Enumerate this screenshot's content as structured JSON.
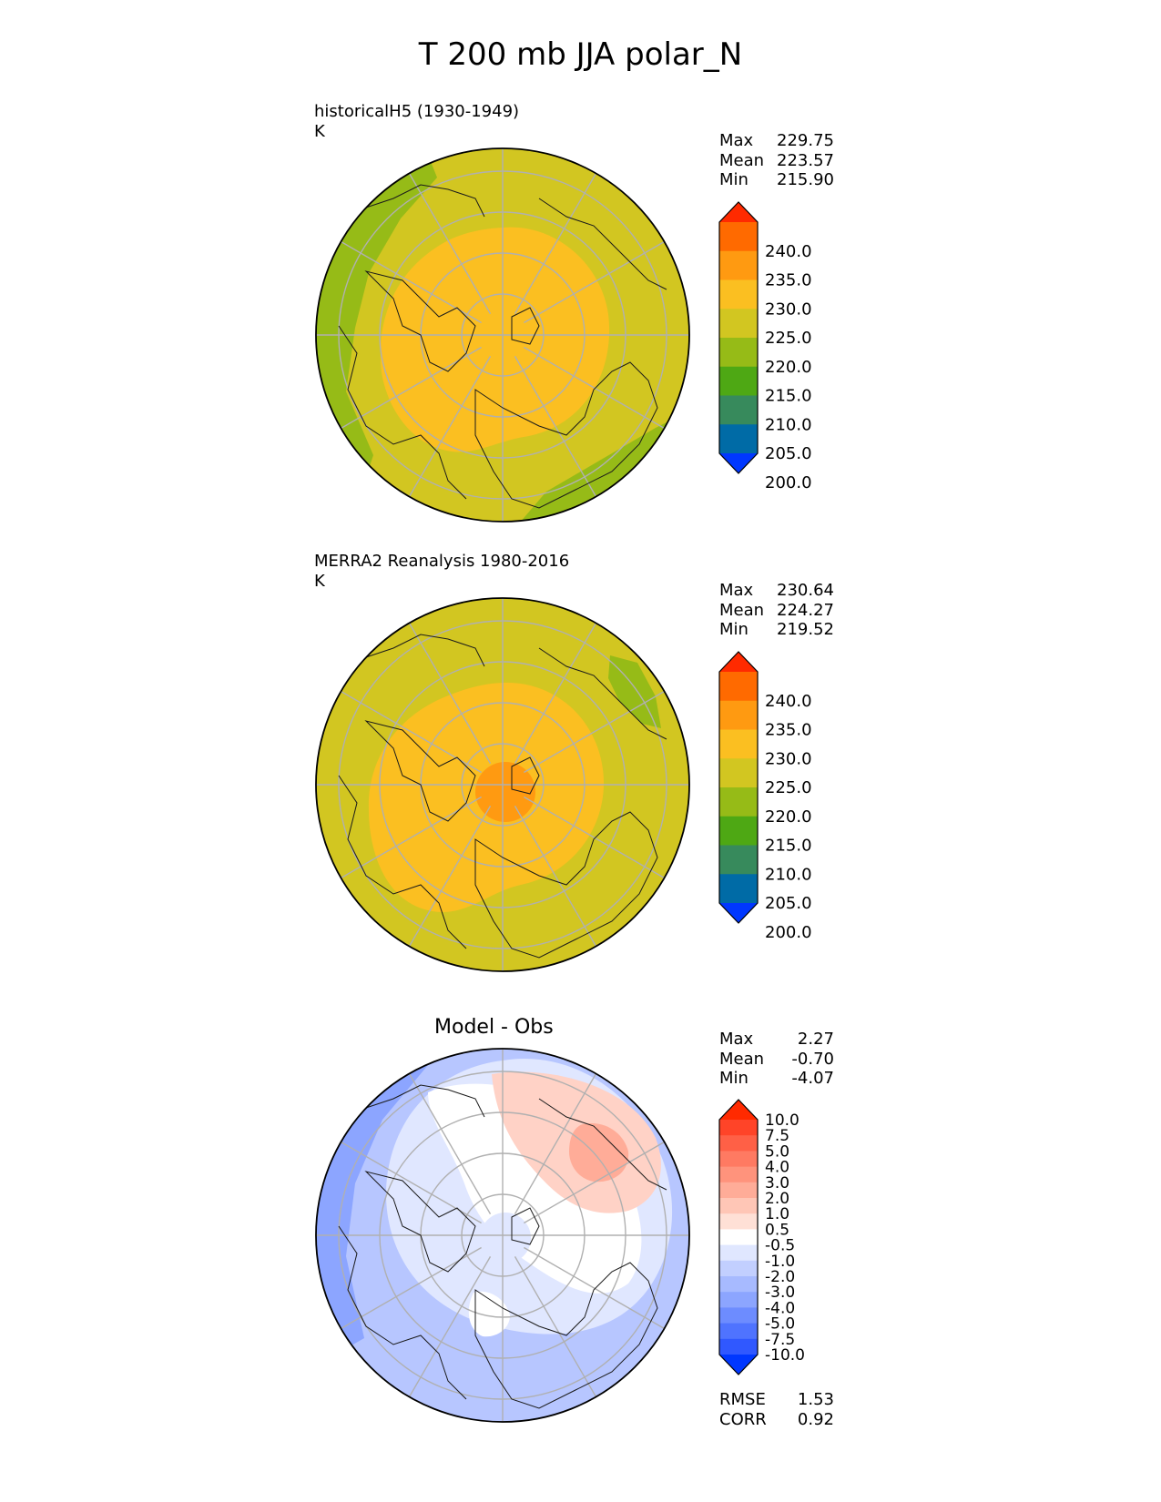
{
  "figure_title": "T 200 mb JJA polar_N",
  "panels": [
    {
      "label": "historicalH5 (1930-1949)",
      "unit": "K",
      "stats": [
        {
          "name": "Max",
          "value": "229.75"
        },
        {
          "name": "Mean",
          "value": "223.57"
        },
        {
          "name": "Min",
          "value": "215.90"
        }
      ]
    },
    {
      "label": "MERRA2 Reanalysis 1980-2016",
      "unit": "K",
      "stats": [
        {
          "name": "Max",
          "value": "230.64"
        },
        {
          "name": "Mean",
          "value": "224.27"
        },
        {
          "name": "Min",
          "value": "219.52"
        }
      ]
    },
    {
      "title": "Model - Obs",
      "stats": [
        {
          "name": "Max",
          "value": "2.27"
        },
        {
          "name": "Mean",
          "value": "-0.70"
        },
        {
          "name": "Min",
          "value": "-4.07"
        }
      ],
      "metrics": [
        {
          "name": "RMSE",
          "value": "1.53"
        },
        {
          "name": "CORR",
          "value": "0.92"
        }
      ]
    }
  ],
  "chart_data": [
    {
      "type": "heatmap",
      "projection": "north polar stereographic",
      "field": "T 200 mb JJA",
      "colorbar": {
        "ticks": [
          "240.0",
          "235.0",
          "230.0",
          "225.0",
          "220.0",
          "215.0",
          "210.0",
          "205.0",
          "200.0"
        ],
        "colors": [
          "#ff2a00",
          "#ff6a00",
          "#ff9a11",
          "#fbbf21",
          "#d2c621",
          "#96bb17",
          "#4ea814",
          "#378a5c",
          "#006ba6",
          "#0037ff"
        ],
        "extend": "both"
      },
      "regions": [
        {
          "range": "220-225",
          "color": "#d2c621",
          "area": "mid-latitude ring"
        },
        {
          "range": "225-230",
          "color": "#fbbf21",
          "area": "Arctic interior"
        },
        {
          "range": "215-220",
          "color": "#96bb17",
          "area": "outer edge (Pacific/Asia and Atlantic sectors)"
        }
      ]
    },
    {
      "type": "heatmap",
      "projection": "north polar stereographic",
      "field": "T 200 mb JJA",
      "colorbar": {
        "ticks": [
          "240.0",
          "235.0",
          "230.0",
          "225.0",
          "220.0",
          "215.0",
          "210.0",
          "205.0",
          "200.0"
        ],
        "colors": [
          "#ff2a00",
          "#ff6a00",
          "#ff9a11",
          "#fbbf21",
          "#d2c621",
          "#96bb17",
          "#4ea814",
          "#378a5c",
          "#006ba6",
          "#0037ff"
        ],
        "extend": "both"
      },
      "regions": [
        {
          "range": "220-225",
          "color": "#d2c621",
          "area": "mid-latitude ring"
        },
        {
          "range": "225-230",
          "color": "#fbbf21",
          "area": "Arctic interior"
        },
        {
          "range": "230-235",
          "color": "#ff9a11",
          "area": "North Pole"
        },
        {
          "range": "215-220",
          "color": "#96bb17",
          "area": "small patch near east edge"
        }
      ]
    },
    {
      "type": "heatmap",
      "projection": "north polar stereographic",
      "field": "Model - Obs",
      "colorbar": {
        "ticks": [
          "10.0",
          "7.5",
          "5.0",
          "4.0",
          "3.0",
          "2.0",
          "1.0",
          "0.5",
          "-0.5",
          "-1.0",
          "-2.0",
          "-3.0",
          "-4.0",
          "-5.0",
          "-7.5",
          "-10.0"
        ],
        "colors": [
          "#ff2a00",
          "#ff4428",
          "#ff6046",
          "#ff7a62",
          "#ff937c",
          "#ffac98",
          "#ffc6b6",
          "#ffe0d6",
          "#ffffff",
          "#e0e7ff",
          "#c2cfff",
          "#a7baff",
          "#8ca5ff",
          "#6d8cff",
          "#4f73ff",
          "#3058ff",
          "#0037ff"
        ],
        "extend": "both"
      },
      "regions": [
        {
          "range": "0.5-2.0",
          "color": "#ffd2c6",
          "area": "upper right sector"
        },
        {
          "range": "2.0-3.0",
          "color": "#ffac98",
          "area": "core of upper right sector"
        },
        {
          "range": "-0.5-0.5",
          "color": "#ffffff",
          "area": "central ring and center-right"
        },
        {
          "range": "-1.0 to -0.5",
          "color": "#e0e7ff",
          "area": "pole and lower interior"
        },
        {
          "range": "-3.0 to -1.0",
          "color": "#b7c6ff",
          "area": "outer ring left and bottom"
        },
        {
          "range": "-4.0 to -3.0",
          "color": "#8ca5ff",
          "area": "outer left edge"
        }
      ]
    }
  ]
}
